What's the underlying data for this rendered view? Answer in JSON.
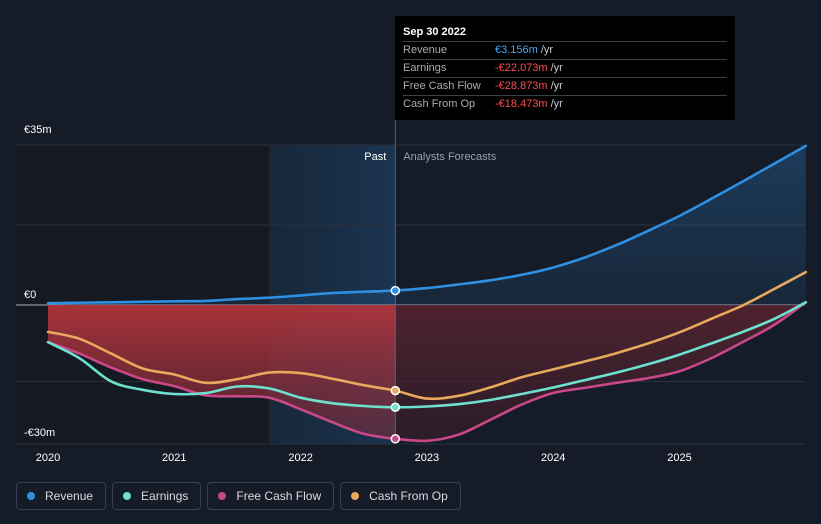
{
  "tooltip": {
    "date": "Sep 30 2022",
    "rows": [
      {
        "label": "Revenue",
        "value": "€3.156m",
        "unit": "/yr",
        "color": "#4aa3f0"
      },
      {
        "label": "Earnings",
        "value": "-€22.073m",
        "unit": "/yr",
        "color": "#ff4d4d"
      },
      {
        "label": "Free Cash Flow",
        "value": "-€28.873m",
        "unit": "/yr",
        "color": "#ff4d4d"
      },
      {
        "label": "Cash From Op",
        "value": "-€18.473m",
        "unit": "/yr",
        "color": "#ff4d4d"
      }
    ]
  },
  "labels": {
    "past": "Past",
    "forecast": "Analysts Forecasts"
  },
  "legend": [
    {
      "label": "Revenue",
      "color": "#2f8fe0"
    },
    {
      "label": "Earnings",
      "color": "#6ee0cf"
    },
    {
      "label": "Free Cash Flow",
      "color": "#c9488a"
    },
    {
      "label": "Cash From Op",
      "color": "#e8a95c"
    }
  ],
  "chart_data": {
    "type": "line",
    "y_tick_labels": [
      "€35m",
      "€0",
      "-€30m"
    ],
    "y_ticks": [
      35,
      0,
      -30
    ],
    "ylim": [
      -30,
      35
    ],
    "xlim": [
      2020,
      2026
    ],
    "x_tick_labels": [
      "2020",
      "2021",
      "2022",
      "2023",
      "2024",
      "2025"
    ],
    "x_ticks": [
      2020,
      2021,
      2022,
      2023,
      2024,
      2025
    ],
    "divider_x": 2022.75,
    "highlight_start_x": 2021.75,
    "series": [
      {
        "name": "Revenue",
        "color": "#2f8fe0",
        "x": [
          2020.0,
          2020.5,
          2021.0,
          2021.25,
          2021.5,
          2021.75,
          2022.0,
          2022.25,
          2022.5,
          2022.75,
          2023.0,
          2023.25,
          2023.5,
          2023.75,
          2024.0,
          2024.25,
          2024.5,
          2024.75,
          2025.0,
          2025.25,
          2025.5,
          2025.75,
          2026.0
        ],
        "y": [
          0.4,
          0.6,
          0.8,
          0.9,
          1.3,
          1.6,
          2.1,
          2.6,
          2.9,
          3.156,
          3.7,
          4.5,
          5.4,
          6.6,
          8.2,
          10.4,
          13.1,
          16.2,
          19.5,
          23.2,
          27.0,
          30.9,
          34.8
        ]
      },
      {
        "name": "Earnings",
        "color": "#6ee0cf",
        "x": [
          2020.0,
          2020.25,
          2020.5,
          2020.75,
          2021.0,
          2021.25,
          2021.5,
          2021.75,
          2022.0,
          2022.25,
          2022.5,
          2022.75,
          2023.0,
          2023.25,
          2023.5,
          2023.75,
          2024.0,
          2024.25,
          2024.5,
          2024.75,
          2025.0,
          2025.25,
          2025.5,
          2025.75,
          2026.0
        ],
        "y": [
          -8.0,
          -11.5,
          -16.5,
          -18.3,
          -19.2,
          -19.0,
          -17.6,
          -18.0,
          -20.0,
          -21.2,
          -21.8,
          -22.073,
          -21.9,
          -21.4,
          -20.5,
          -19.2,
          -17.8,
          -16.2,
          -14.6,
          -12.8,
          -10.7,
          -8.3,
          -5.8,
          -3.0,
          0.6
        ]
      },
      {
        "name": "Free Cash Flow",
        "color": "#c9488a",
        "x": [
          2020.0,
          2020.25,
          2020.5,
          2020.75,
          2021.0,
          2021.25,
          2021.5,
          2021.75,
          2022.0,
          2022.25,
          2022.5,
          2022.75,
          2023.0,
          2023.25,
          2023.5,
          2023.75,
          2024.0,
          2024.25,
          2024.5,
          2024.75,
          2025.0,
          2025.25,
          2025.5,
          2025.75,
          2026.0
        ],
        "y": [
          -8.0,
          -10.5,
          -13.5,
          -16.0,
          -17.5,
          -19.5,
          -19.7,
          -20.0,
          -22.5,
          -25.3,
          -27.8,
          -28.873,
          -29.3,
          -28.0,
          -24.8,
          -21.5,
          -19.0,
          -17.9,
          -16.8,
          -15.8,
          -14.3,
          -11.5,
          -8.0,
          -4.3,
          0.6
        ]
      },
      {
        "name": "Cash From Op",
        "color": "#e8a95c",
        "x": [
          2020.0,
          2020.25,
          2020.5,
          2020.75,
          2021.0,
          2021.25,
          2021.5,
          2021.75,
          2022.0,
          2022.25,
          2022.5,
          2022.75,
          2023.0,
          2023.25,
          2023.5,
          2023.75,
          2024.0,
          2024.25,
          2024.5,
          2024.75,
          2025.0,
          2025.25,
          2025.5,
          2025.75,
          2026.0
        ],
        "y": [
          -5.8,
          -7.3,
          -10.5,
          -13.7,
          -15.0,
          -16.8,
          -16.0,
          -14.6,
          -14.7,
          -15.9,
          -17.3,
          -18.473,
          -20.2,
          -19.6,
          -17.8,
          -15.6,
          -13.9,
          -12.2,
          -10.4,
          -8.3,
          -5.9,
          -3.0,
          -0.1,
          3.5,
          7.2
        ]
      }
    ]
  }
}
